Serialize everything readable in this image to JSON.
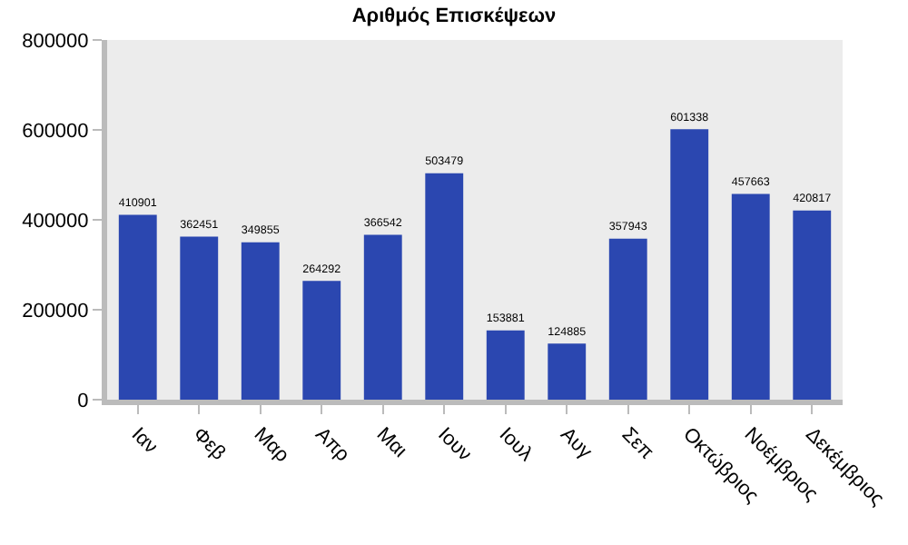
{
  "chart_data": {
    "type": "bar",
    "title": "Αριθμός Επισκέψεων",
    "categories": [
      "Ιαν",
      "Φεβ",
      "Μαρ",
      "Απρ",
      "Μαι",
      "Ιουν",
      "Ιουλ",
      "Αυγ",
      "Σεπ",
      "Οκτώβριος",
      "Νοέμβριος",
      "Δεκέμβριος"
    ],
    "values": [
      410901,
      362451,
      349855,
      264292,
      366542,
      503479,
      153881,
      124885,
      357943,
      601338,
      457663,
      420817
    ],
    "color": "#2b47b0",
    "ylim": [
      0,
      800000
    ],
    "yticks": [
      0,
      200000,
      400000,
      600000,
      800000
    ],
    "grid": false,
    "data_labels": true
  }
}
